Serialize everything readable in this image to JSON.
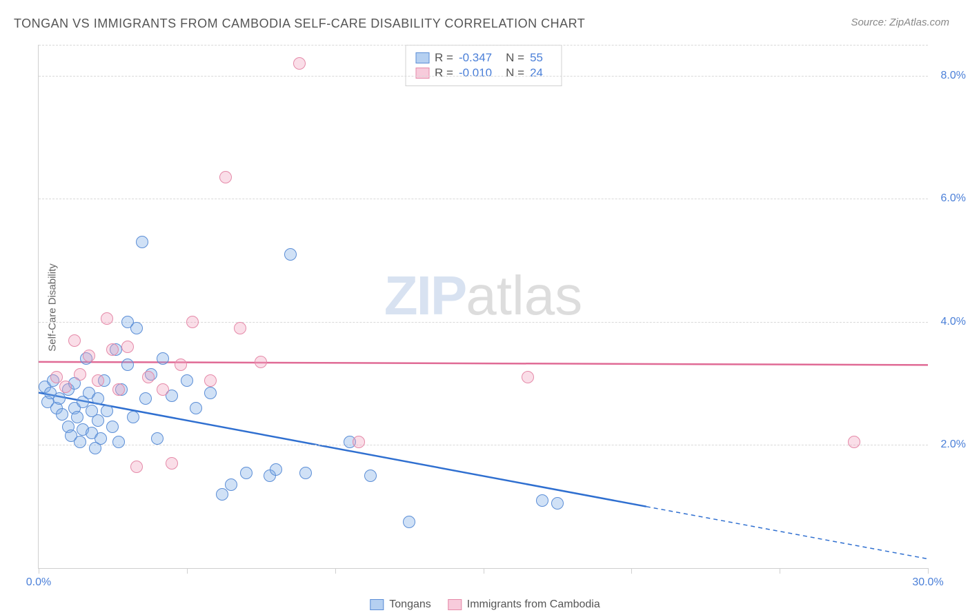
{
  "chart": {
    "type": "scatter",
    "title": "TONGAN VS IMMIGRANTS FROM CAMBODIA SELF-CARE DISABILITY CORRELATION CHART",
    "source_label": "Source: ZipAtlas.com",
    "ylabel": "Self-Care Disability",
    "watermark": {
      "zip": "ZIP",
      "atlas": "atlas"
    },
    "background_color": "#ffffff",
    "grid_color": "#d8d8d8",
    "axis_color": "#cfcfcf",
    "tick_label_color": "#4a7fd8",
    "text_color": "#555555",
    "title_fontsize": 18,
    "label_fontsize": 15,
    "tick_fontsize": 16,
    "xlim": [
      0,
      30
    ],
    "ylim": [
      0,
      8.5
    ],
    "xtick_positions": [
      0,
      5,
      10,
      15,
      20,
      25,
      30
    ],
    "xtick_labels": {
      "0": "0.0%",
      "30": "30.0%"
    },
    "ytick_positions": [
      2,
      4,
      6,
      8
    ],
    "ytick_labels": [
      "2.0%",
      "4.0%",
      "6.0%",
      "8.0%"
    ],
    "marker_radius": 9,
    "marker_border_width": 1.5,
    "regression_line_width": 2.5,
    "series": [
      {
        "name": "Tongans",
        "fill_color": "rgba(120,170,230,0.35)",
        "stroke_color": "#5a8dd6",
        "line_color": "#2f6fd0",
        "R": "-0.347",
        "N": "55",
        "regression": {
          "x1": 0,
          "y1": 2.85,
          "x2": 20.5,
          "y2": 1.0,
          "x3": 30,
          "y3": 0.15
        },
        "points": [
          [
            0.2,
            2.95
          ],
          [
            0.3,
            2.7
          ],
          [
            0.4,
            2.85
          ],
          [
            0.5,
            3.05
          ],
          [
            0.6,
            2.6
          ],
          [
            0.7,
            2.75
          ],
          [
            0.8,
            2.5
          ],
          [
            1.0,
            2.9
          ],
          [
            1.0,
            2.3
          ],
          [
            1.1,
            2.15
          ],
          [
            1.2,
            3.0
          ],
          [
            1.2,
            2.6
          ],
          [
            1.3,
            2.45
          ],
          [
            1.4,
            2.05
          ],
          [
            1.5,
            2.7
          ],
          [
            1.5,
            2.25
          ],
          [
            1.6,
            3.4
          ],
          [
            1.7,
            2.85
          ],
          [
            1.8,
            2.2
          ],
          [
            1.8,
            2.55
          ],
          [
            1.9,
            1.95
          ],
          [
            2.0,
            2.75
          ],
          [
            2.0,
            2.4
          ],
          [
            2.1,
            2.1
          ],
          [
            2.2,
            3.05
          ],
          [
            2.3,
            2.55
          ],
          [
            2.5,
            2.3
          ],
          [
            2.6,
            3.55
          ],
          [
            2.7,
            2.05
          ],
          [
            2.8,
            2.9
          ],
          [
            3.0,
            3.3
          ],
          [
            3.0,
            4.0
          ],
          [
            3.2,
            2.45
          ],
          [
            3.3,
            3.9
          ],
          [
            3.5,
            5.3
          ],
          [
            3.6,
            2.75
          ],
          [
            3.8,
            3.15
          ],
          [
            4.0,
            2.1
          ],
          [
            4.2,
            3.4
          ],
          [
            4.5,
            2.8
          ],
          [
            5.0,
            3.05
          ],
          [
            5.3,
            2.6
          ],
          [
            5.8,
            2.85
          ],
          [
            6.2,
            1.2
          ],
          [
            6.5,
            1.35
          ],
          [
            7.0,
            1.55
          ],
          [
            7.8,
            1.5
          ],
          [
            8.0,
            1.6
          ],
          [
            8.5,
            5.1
          ],
          [
            9.0,
            1.55
          ],
          [
            10.5,
            2.05
          ],
          [
            11.2,
            1.5
          ],
          [
            12.5,
            0.75
          ],
          [
            17.0,
            1.1
          ],
          [
            17.5,
            1.05
          ]
        ]
      },
      {
        "name": "Immigrants from Cambodia",
        "fill_color": "rgba(240,160,190,0.35)",
        "stroke_color": "#e589a8",
        "line_color": "#e06a95",
        "R": "-0.010",
        "N": "24",
        "regression": {
          "x1": 0,
          "y1": 3.35,
          "x2": 30,
          "y2": 3.3
        },
        "points": [
          [
            0.6,
            3.1
          ],
          [
            0.9,
            2.95
          ],
          [
            1.2,
            3.7
          ],
          [
            1.4,
            3.15
          ],
          [
            1.7,
            3.45
          ],
          [
            2.0,
            3.05
          ],
          [
            2.3,
            4.05
          ],
          [
            2.5,
            3.55
          ],
          [
            2.7,
            2.9
          ],
          [
            3.0,
            3.6
          ],
          [
            3.3,
            1.65
          ],
          [
            3.7,
            3.1
          ],
          [
            4.2,
            2.9
          ],
          [
            4.5,
            1.7
          ],
          [
            4.8,
            3.3
          ],
          [
            5.2,
            4.0
          ],
          [
            5.8,
            3.05
          ],
          [
            6.3,
            6.35
          ],
          [
            6.8,
            3.9
          ],
          [
            7.5,
            3.35
          ],
          [
            8.8,
            8.2
          ],
          [
            10.8,
            2.05
          ],
          [
            16.5,
            3.1
          ],
          [
            27.5,
            2.05
          ]
        ]
      }
    ],
    "legend_bottom": [
      {
        "label": "Tongans",
        "fill": "rgba(120,170,230,0.55)",
        "stroke": "#5a8dd6"
      },
      {
        "label": "Immigrants from Cambodia",
        "fill": "rgba(240,160,190,0.55)",
        "stroke": "#e589a8"
      }
    ]
  }
}
